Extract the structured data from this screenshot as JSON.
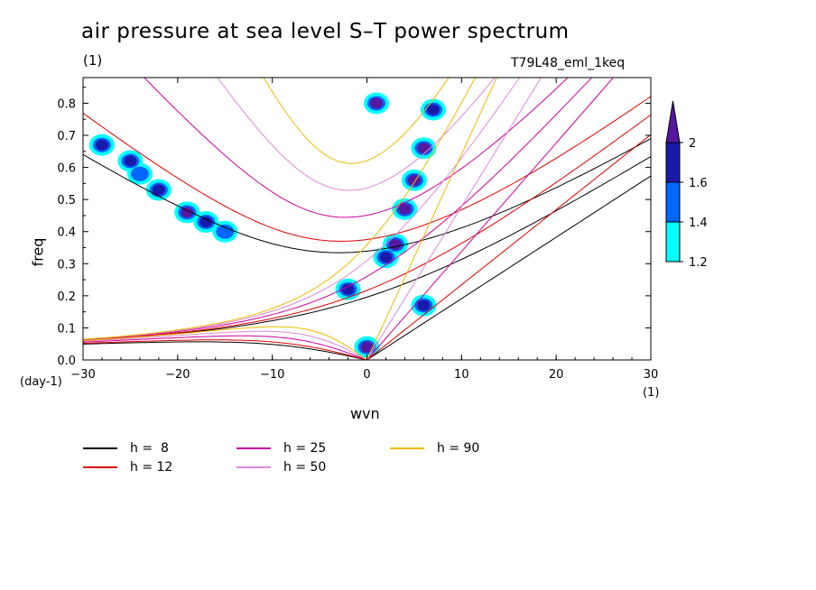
{
  "chart_data": {
    "type": "heatmap",
    "title": "air pressure at sea level S–T power spectrum",
    "subtitle_left": "(1)",
    "subtitle_right": "T79L48_eml_1keq",
    "xlabel": "wvn",
    "ylabel": "freq",
    "x_unit_left": "(day-1)",
    "x_unit_right": "(1)",
    "xlim": [
      -30,
      30
    ],
    "ylim": [
      0,
      0.88
    ],
    "xticks": [
      -30,
      -20,
      -10,
      0,
      10,
      20,
      30
    ],
    "yticks": [
      0.0,
      0.1,
      0.2,
      0.3,
      0.4,
      0.5,
      0.6,
      0.7,
      0.8
    ],
    "ytick_labels": [
      "0.0",
      "0.1",
      "0.2",
      "0.3",
      "0.4",
      "0.5",
      "0.6",
      "0.7",
      "0.8"
    ],
    "colorbar": {
      "levels": [
        1.2,
        1.4,
        1.6,
        2
      ],
      "labels": [
        "1.2",
        "1.4",
        "1.6",
        "2"
      ],
      "colors": [
        "#00ffff",
        "#0066ff",
        "#1a1aaa",
        "#5518a0"
      ]
    },
    "dispersion_curves": [
      {
        "name": "h =  8",
        "h": 8,
        "color": "#000000"
      },
      {
        "name": "h = 12",
        "h": 12,
        "color": "#dd0000"
      },
      {
        "name": "h = 25",
        "h": 25,
        "color": "#cc0099"
      },
      {
        "name": "h = 50",
        "h": 50,
        "color": "#dd88dd"
      },
      {
        "name": "h = 90",
        "h": 90,
        "color": "#eebb00"
      }
    ],
    "spectral_peaks": [
      {
        "x": -28,
        "y": 0.67,
        "level": 1.6
      },
      {
        "x": -25,
        "y": 0.62,
        "level": 1.6
      },
      {
        "x": -22,
        "y": 0.53,
        "level": 1.6
      },
      {
        "x": -19,
        "y": 0.46,
        "level": 2
      },
      {
        "x": -17,
        "y": 0.43,
        "level": 1.6
      },
      {
        "x": -24,
        "y": 0.58,
        "level": 1.4
      },
      {
        "x": -15,
        "y": 0.4,
        "level": 1.4
      },
      {
        "x": 1,
        "y": 0.8,
        "level": 2
      },
      {
        "x": 2,
        "y": 0.32,
        "level": 1.6
      },
      {
        "x": 3,
        "y": 0.36,
        "level": 2
      },
      {
        "x": 4,
        "y": 0.47,
        "level": 2
      },
      {
        "x": 5,
        "y": 0.56,
        "level": 2
      },
      {
        "x": 6,
        "y": 0.66,
        "level": 2
      },
      {
        "x": 7,
        "y": 0.78,
        "level": 1.6
      },
      {
        "x": 0,
        "y": 0.04,
        "level": 2
      },
      {
        "x": 6,
        "y": 0.17,
        "level": 1.6
      },
      {
        "x": -2,
        "y": 0.22,
        "level": 1.6
      }
    ]
  }
}
